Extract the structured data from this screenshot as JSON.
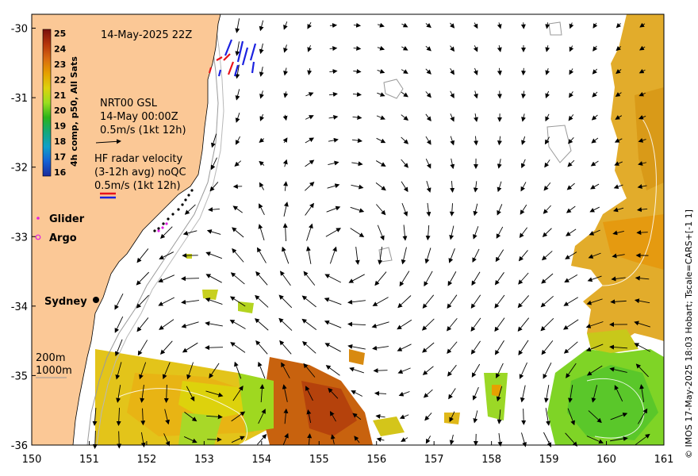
{
  "map": {
    "timestamp": "14-May-2025 22Z",
    "x_ticks": [
      "150",
      "151",
      "152",
      "153",
      "154",
      "155",
      "156",
      "157",
      "158",
      "159",
      "160",
      "161"
    ],
    "y_ticks": [
      "-30",
      "-31",
      "-32",
      "-33",
      "-34",
      "-35",
      "-36"
    ],
    "x_range": [
      150,
      161
    ],
    "y_range": [
      -36,
      -29.8
    ],
    "colorbar": {
      "ticks": [
        "25",
        "24",
        "23",
        "22",
        "21",
        "20",
        "19",
        "18",
        "17",
        "16"
      ],
      "colors": [
        "#7a0f0c",
        "#b5340b",
        "#d86a10",
        "#e6a000",
        "#ddd20c",
        "#9ade1f",
        "#2bb31a",
        "#14a87a",
        "#0fa0c9",
        "#1560d4",
        "#1a2a9a"
      ],
      "title": "4h comp, p50, All Sats"
    },
    "geostrophic": {
      "title": "NRT00 GSL",
      "date": "14-May 00:00Z",
      "scale": "0.5m/s (1kt 12h)"
    },
    "hf_radar": {
      "title": "HF radar velocity",
      "subtitle": "(3-12h avg) noQC",
      "scale": "0.5m/s (1kt 12h)"
    },
    "legend": {
      "glider": "Glider",
      "argo": "Argo"
    },
    "city": "Sydney",
    "isobaths": {
      "a": "200m",
      "b": "1000m"
    },
    "credit": "© IMOS 17-May-2025 18:03 Hobart; Tscale=CARS+[-1 1]",
    "colors": {
      "land": "#fbc896",
      "hf_red": "#e8121a",
      "hf_blue": "#1b22e0",
      "glider": "#e020e0"
    }
  }
}
